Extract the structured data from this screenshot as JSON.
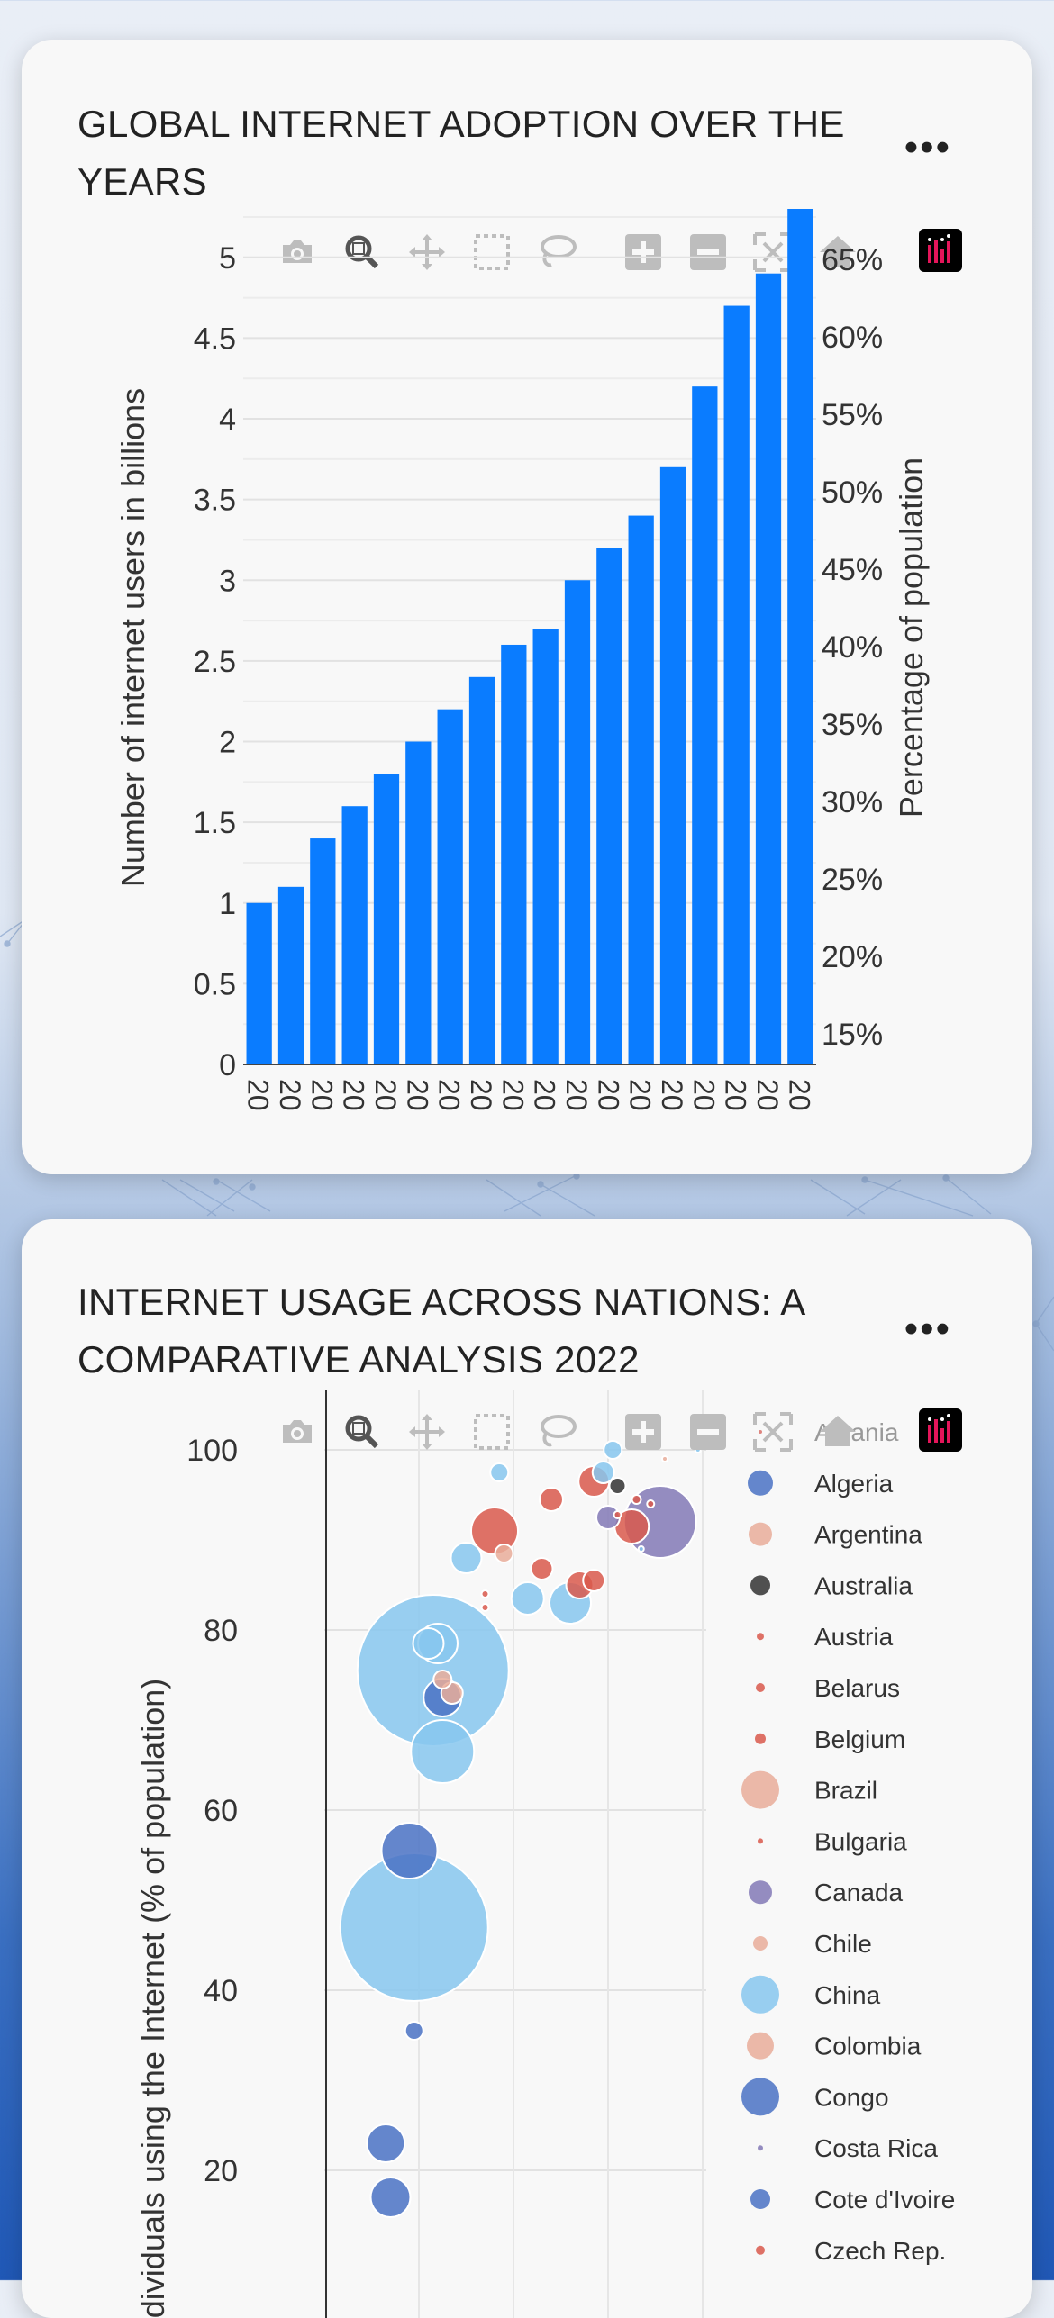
{
  "cards": [
    {
      "title": "GLOBAL INTERNET ADOPTION OVER THE YEARS",
      "menu_icon": "more-dots-icon"
    },
    {
      "title": "INTERNET USAGE ACROSS NATIONS: A COMPARATIVE ANALYSIS 2022",
      "menu_icon": "more-dots-icon"
    }
  ],
  "toolbar": {
    "buttons": [
      "camera-icon",
      "zoom-icon",
      "pan-icon",
      "box-select-icon",
      "lasso-icon",
      "zoom-in-icon",
      "zoom-out-icon",
      "autoscale-icon",
      "reset-axes-icon",
      "plotly-logo-icon"
    ],
    "active": "zoom-icon"
  },
  "chart_data": [
    {
      "type": "bar",
      "title": "GLOBAL INTERNET ADOPTION OVER THE YEARS",
      "ylabel": "Number of internet users in billions",
      "y2label": "Percentage of population",
      "ylim": [
        0,
        5.3
      ],
      "yticks": [
        "0",
        "0.5",
        "1",
        "1.5",
        "2",
        "2.5",
        "3",
        "3.5",
        "4",
        "4.5",
        "5"
      ],
      "y2ticks": [
        "15%",
        "20%",
        "25%",
        "30%",
        "35%",
        "40%",
        "45%",
        "50%",
        "55%",
        "60%",
        "65%"
      ],
      "categories": [
        "20",
        "20",
        "20",
        "20",
        "20",
        "20",
        "20",
        "20",
        "20",
        "20",
        "20",
        "20",
        "20",
        "20",
        "20",
        "20",
        "20",
        "20"
      ],
      "values": [
        1.0,
        1.1,
        1.4,
        1.6,
        1.8,
        2.0,
        2.2,
        2.4,
        2.6,
        2.7,
        3.0,
        3.2,
        3.4,
        3.7,
        4.2,
        4.7,
        4.9,
        5.3
      ],
      "bar_color": "#0a7cff",
      "grid": true
    },
    {
      "type": "scatter",
      "title": "INTERNET USAGE ACROSS NATIONS: A COMPARATIVE ANALYSIS 2022",
      "ylabel": "Individuals using the Internet (% of population)",
      "yticks": [
        "20",
        "40",
        "60",
        "80",
        "100"
      ],
      "ylim": [
        11,
        104
      ],
      "grid": true,
      "legend_position": "right",
      "legend": [
        {
          "name": "Albania",
          "color": "#d9716a",
          "size": 2
        },
        {
          "name": "Algeria",
          "color": "#4a72c4",
          "size": 14
        },
        {
          "name": "Argentina",
          "color": "#e9ad9a",
          "size": 13
        },
        {
          "name": "Australia",
          "color": "#333333",
          "size": 11
        },
        {
          "name": "Austria",
          "color": "#d9594c",
          "size": 4
        },
        {
          "name": "Belarus",
          "color": "#d9594c",
          "size": 5
        },
        {
          "name": "Belgium",
          "color": "#d9594c",
          "size": 6
        },
        {
          "name": "Brazil",
          "color": "#e9ad9a",
          "size": 21
        },
        {
          "name": "Bulgaria",
          "color": "#d9594c",
          "size": 3
        },
        {
          "name": "Canada",
          "color": "#8379b6",
          "size": 13
        },
        {
          "name": "Chile",
          "color": "#e9ad9a",
          "size": 8
        },
        {
          "name": "China",
          "color": "#87c7ef",
          "size": 21
        },
        {
          "name": "Colombia",
          "color": "#e9ad9a",
          "size": 15
        },
        {
          "name": "Congo",
          "color": "#4a72c4",
          "size": 21
        },
        {
          "name": "Costa Rica",
          "color": "#8379b6",
          "size": 3
        },
        {
          "name": "Cote d'Ivoire",
          "color": "#4a72c4",
          "size": 11
        },
        {
          "name": "Czech Rep.",
          "color": "#d9594c",
          "size": 5
        }
      ],
      "points": [
        {
          "x": 0.95,
          "y": 47,
          "r": 82,
          "color": "#87c7ef"
        },
        {
          "x": 1.15,
          "y": 75.5,
          "r": 84,
          "color": "#87c7ef"
        },
        {
          "x": 0.9,
          "y": 55.5,
          "r": 31,
          "color": "#4a72c4"
        },
        {
          "x": 0.65,
          "y": 23,
          "r": 21,
          "color": "#4a72c4"
        },
        {
          "x": 0.7,
          "y": 17,
          "r": 22,
          "color": "#4a72c4"
        },
        {
          "x": 0.95,
          "y": 35.5,
          "r": 10,
          "color": "#4a72c4"
        },
        {
          "x": 1.25,
          "y": 66.5,
          "r": 35,
          "color": "#87c7ef"
        },
        {
          "x": 1.25,
          "y": 72.5,
          "r": 21,
          "color": "#4a72c4"
        },
        {
          "x": 1.1,
          "y": 78.5,
          "r": 17,
          "color": "#87c7ef"
        },
        {
          "x": 1.2,
          "y": 78.5,
          "r": 22,
          "color": "#87c7ef"
        },
        {
          "x": 1.25,
          "y": 74.5,
          "r": 10,
          "color": "#e9ad9a"
        },
        {
          "x": 1.35,
          "y": 73,
          "r": 12,
          "color": "#e9ad9a"
        },
        {
          "x": 1.5,
          "y": 88,
          "r": 17,
          "color": "#87c7ef"
        },
        {
          "x": 1.7,
          "y": 84,
          "r": 4,
          "color": "#d9594c"
        },
        {
          "x": 1.8,
          "y": 91,
          "r": 26,
          "color": "#d9594c"
        },
        {
          "x": 1.9,
          "y": 88.5,
          "r": 10,
          "color": "#e9ad9a"
        },
        {
          "x": 1.85,
          "y": 97.5,
          "r": 10,
          "color": "#87c7ef"
        },
        {
          "x": 2.15,
          "y": 83.5,
          "r": 18,
          "color": "#87c7ef"
        },
        {
          "x": 2.3,
          "y": 86.8,
          "r": 12,
          "color": "#d9594c"
        },
        {
          "x": 2.4,
          "y": 94.5,
          "r": 13,
          "color": "#d9594c"
        },
        {
          "x": 2.6,
          "y": 83,
          "r": 23,
          "color": "#87c7ef"
        },
        {
          "x": 2.7,
          "y": 85,
          "r": 15,
          "color": "#d9594c"
        },
        {
          "x": 2.85,
          "y": 85.5,
          "r": 12,
          "color": "#d9594c"
        },
        {
          "x": 2.85,
          "y": 96.5,
          "r": 17,
          "color": "#d9594c"
        },
        {
          "x": 2.95,
          "y": 97.5,
          "r": 12,
          "color": "#87c7ef"
        },
        {
          "x": 3.05,
          "y": 100,
          "r": 10,
          "color": "#87c7ef"
        },
        {
          "x": 3.0,
          "y": 92.5,
          "r": 13,
          "color": "#8379b6"
        },
        {
          "x": 3.1,
          "y": 96,
          "r": 9,
          "color": "#333333"
        },
        {
          "x": 3.25,
          "y": 91.5,
          "r": 19,
          "color": "#d9594c"
        },
        {
          "x": 3.3,
          "y": 94.5,
          "r": 5,
          "color": "#d9594c"
        },
        {
          "x": 3.55,
          "y": 92,
          "r": 40,
          "color": "#8379b6"
        },
        {
          "x": 3.45,
          "y": 94,
          "r": 4,
          "color": "#d9594c"
        },
        {
          "x": 3.6,
          "y": 99,
          "r": 3,
          "color": "#e9ad9a"
        },
        {
          "x": 3.35,
          "y": 89,
          "r": 3,
          "color": "#87c7ef"
        },
        {
          "x": 3.95,
          "y": 100,
          "r": 3,
          "color": "#87c7ef"
        },
        {
          "x": 3.1,
          "y": 92.8,
          "r": 4,
          "color": "#d9594c"
        },
        {
          "x": 1.7,
          "y": 82.5,
          "r": 4,
          "color": "#d9594c"
        }
      ]
    }
  ]
}
